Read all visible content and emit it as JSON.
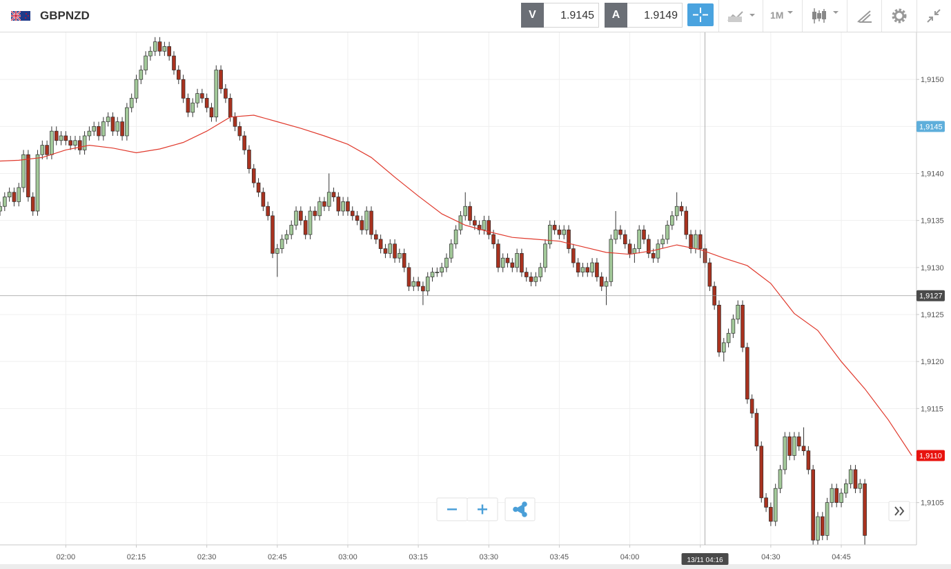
{
  "toolbar": {
    "symbol": "GBPNZD",
    "bid_label": "V",
    "bid": 1.9145,
    "ask_label": "A",
    "ask": 1.9149,
    "timeframe": "1M"
  },
  "chart_data": {
    "type": "candlestick",
    "x": [
      "01:46",
      "01:47",
      "01:48",
      "01:49",
      "01:50",
      "01:51",
      "01:52",
      "01:53",
      "01:54",
      "01:55",
      "01:56",
      "01:57",
      "01:58",
      "01:59",
      "02:00",
      "02:01",
      "02:02",
      "02:03",
      "02:04",
      "02:05",
      "02:06",
      "02:07",
      "02:08",
      "02:09",
      "02:10",
      "02:11",
      "02:12",
      "02:13",
      "02:14",
      "02:15",
      "02:16",
      "02:17",
      "02:18",
      "02:19",
      "02:20",
      "02:21",
      "02:22",
      "02:23",
      "02:24",
      "02:25",
      "02:26",
      "02:27",
      "02:28",
      "02:29",
      "02:30",
      "02:31",
      "02:32",
      "02:33",
      "02:34",
      "02:35",
      "02:36",
      "02:37",
      "02:38",
      "02:39",
      "02:40",
      "02:41",
      "02:42",
      "02:43",
      "02:44",
      "02:45",
      "02:46",
      "02:47",
      "02:48",
      "02:49",
      "02:50",
      "02:51",
      "02:52",
      "02:53",
      "02:54",
      "02:55",
      "02:56",
      "02:57",
      "02:58",
      "02:59",
      "03:00",
      "03:01",
      "03:02",
      "03:03",
      "03:04",
      "03:05",
      "03:06",
      "03:07",
      "03:08",
      "03:09",
      "03:10",
      "03:11",
      "03:12",
      "03:13",
      "03:14",
      "03:15",
      "03:16",
      "03:17",
      "03:18",
      "03:19",
      "03:20",
      "03:21",
      "03:22",
      "03:23",
      "03:24",
      "03:25",
      "03:26",
      "03:27",
      "03:28",
      "03:29",
      "03:30",
      "03:31",
      "03:32",
      "03:33",
      "03:34",
      "03:35",
      "03:36",
      "03:37",
      "03:38",
      "03:39",
      "03:40",
      "03:41",
      "03:42",
      "03:43",
      "03:44",
      "03:45",
      "03:46",
      "03:47",
      "03:48",
      "03:49",
      "03:50",
      "03:51",
      "03:52",
      "03:53",
      "03:54",
      "03:55",
      "03:56",
      "03:57",
      "03:58",
      "03:59",
      "04:00",
      "04:01",
      "04:02",
      "04:03",
      "04:04",
      "04:05",
      "04:06",
      "04:07",
      "04:08",
      "04:09",
      "04:10",
      "04:11",
      "04:12",
      "04:13",
      "04:14",
      "04:15",
      "04:16",
      "04:17",
      "04:18",
      "04:19",
      "04:20",
      "04:21",
      "04:22",
      "04:23",
      "04:24",
      "04:25",
      "04:26",
      "04:27",
      "04:28",
      "04:29",
      "04:30",
      "04:31",
      "04:32",
      "04:33",
      "04:34",
      "04:35",
      "04:36",
      "04:37",
      "04:38",
      "04:39",
      "04:40",
      "04:41",
      "04:42",
      "04:43",
      "04:44",
      "04:45",
      "04:46",
      "04:47",
      "04:48",
      "04:49",
      "04:50"
    ],
    "open": [
      1.9136,
      1.91365,
      1.91375,
      1.9138,
      1.9137,
      1.91385,
      1.9142,
      1.91375,
      1.9136,
      1.9142,
      1.9143,
      1.9142,
      1.91445,
      1.91435,
      1.9144,
      1.91435,
      1.9143,
      1.91435,
      1.91425,
      1.9144,
      1.91445,
      1.9145,
      1.9144,
      1.91455,
      1.9146,
      1.91445,
      1.91455,
      1.9144,
      1.9147,
      1.9148,
      1.915,
      1.9151,
      1.91525,
      1.9153,
      1.9154,
      1.9153,
      1.91535,
      1.91525,
      1.9151,
      1.915,
      1.9148,
      1.91465,
      1.91475,
      1.91485,
      1.9148,
      1.9147,
      1.9146,
      1.9151,
      1.9149,
      1.9148,
      1.9146,
      1.9145,
      1.9144,
      1.91425,
      1.91405,
      1.9139,
      1.9138,
      1.91365,
      1.91355,
      1.91315,
      1.9132,
      1.9133,
      1.91335,
      1.91345,
      1.9136,
      1.9135,
      1.91335,
      1.9136,
      1.91355,
      1.9137,
      1.91365,
      1.9138,
      1.91375,
      1.9136,
      1.9137,
      1.9136,
      1.91355,
      1.9135,
      1.9134,
      1.9136,
      1.91335,
      1.9133,
      1.9132,
      1.91315,
      1.91325,
      1.9131,
      1.91315,
      1.913,
      1.9128,
      1.91285,
      1.9128,
      1.91275,
      1.9129,
      1.91295,
      1.91295,
      1.913,
      1.9131,
      1.91325,
      1.9134,
      1.91355,
      1.91365,
      1.9135,
      1.91345,
      1.9134,
      1.9135,
      1.91335,
      1.91325,
      1.913,
      1.9131,
      1.91305,
      1.913,
      1.91315,
      1.91295,
      1.9129,
      1.91285,
      1.9129,
      1.913,
      1.91325,
      1.91345,
      1.9134,
      1.91335,
      1.9134,
      1.9132,
      1.91305,
      1.91295,
      1.913,
      1.91295,
      1.91305,
      1.9129,
      1.9128,
      1.91285,
      1.9133,
      1.9134,
      1.91335,
      1.91325,
      1.91315,
      1.9132,
      1.9134,
      1.9133,
      1.91315,
      1.9131,
      1.91325,
      1.9133,
      1.91345,
      1.91355,
      1.91365,
      1.9136,
      1.91335,
      1.9132,
      1.91335,
      1.9132,
      1.91305,
      1.9128,
      1.9126,
      1.9121,
      1.9122,
      1.9123,
      1.91245,
      1.9126,
      1.91215,
      1.9116,
      1.91145,
      1.9111,
      1.91055,
      1.91045,
      1.9103,
      1.91065,
      1.91085,
      1.9112,
      1.911,
      1.9112,
      1.9111,
      1.91105,
      1.91085,
      1.9101,
      1.91035,
      1.91015,
      1.9105,
      1.91065,
      1.9105,
      1.9106,
      1.9107,
      1.91085,
      1.91065,
      1.9107
    ],
    "high": [
      1.9137,
      1.9138,
      1.91385,
      1.91385,
      1.9139,
      1.91425,
      1.91425,
      1.9138,
      1.91425,
      1.91435,
      1.91435,
      1.9145,
      1.9145,
      1.91445,
      1.91445,
      1.9144,
      1.9144,
      1.9144,
      1.91445,
      1.9145,
      1.91455,
      1.91455,
      1.9146,
      1.91465,
      1.91465,
      1.9146,
      1.9146,
      1.91475,
      1.91485,
      1.91505,
      1.91515,
      1.9153,
      1.91535,
      1.91545,
      1.91545,
      1.9154,
      1.9154,
      1.9153,
      1.91515,
      1.91505,
      1.91485,
      1.9148,
      1.9149,
      1.9149,
      1.91485,
      1.91475,
      1.91515,
      1.91515,
      1.91495,
      1.91485,
      1.91465,
      1.91455,
      1.91445,
      1.9143,
      1.9141,
      1.91395,
      1.91385,
      1.9137,
      1.9136,
      1.91325,
      1.91335,
      1.9134,
      1.9135,
      1.91365,
      1.91365,
      1.91355,
      1.91365,
      1.91365,
      1.91375,
      1.91375,
      1.914,
      1.91385,
      1.9138,
      1.91375,
      1.91375,
      1.91365,
      1.9136,
      1.91355,
      1.91365,
      1.91365,
      1.9134,
      1.91335,
      1.91325,
      1.9133,
      1.9133,
      1.9132,
      1.9132,
      1.91305,
      1.9129,
      1.9129,
      1.91285,
      1.91295,
      1.913,
      1.913,
      1.91305,
      1.91315,
      1.9133,
      1.91345,
      1.9136,
      1.9138,
      1.9137,
      1.91355,
      1.9135,
      1.91355,
      1.91355,
      1.9134,
      1.9133,
      1.91315,
      1.91315,
      1.9131,
      1.9132,
      1.9132,
      1.913,
      1.91295,
      1.91295,
      1.91305,
      1.9133,
      1.9135,
      1.9135,
      1.91345,
      1.91345,
      1.91345,
      1.91325,
      1.9131,
      1.91305,
      1.91305,
      1.9131,
      1.9131,
      1.91295,
      1.9129,
      1.91335,
      1.9136,
      1.91345,
      1.9134,
      1.9133,
      1.91325,
      1.91345,
      1.91345,
      1.91335,
      1.9132,
      1.9133,
      1.91335,
      1.9135,
      1.9136,
      1.9138,
      1.9137,
      1.91365,
      1.9134,
      1.9134,
      1.9134,
      1.91325,
      1.9131,
      1.91285,
      1.91265,
      1.91225,
      1.91235,
      1.9125,
      1.91265,
      1.91265,
      1.9122,
      1.91165,
      1.9115,
      1.91115,
      1.9106,
      1.9105,
      1.9107,
      1.9109,
      1.91125,
      1.91125,
      1.91125,
      1.91125,
      1.9113,
      1.9111,
      1.9109,
      1.9104,
      1.9104,
      1.91055,
      1.9107,
      1.9107,
      1.91065,
      1.91075,
      1.9109,
      1.9109,
      1.91075,
      1.91075
    ],
    "low": [
      1.91355,
      1.9136,
      1.9137,
      1.91365,
      1.91365,
      1.9138,
      1.9137,
      1.91355,
      1.91355,
      1.91415,
      1.91415,
      1.91415,
      1.9143,
      1.9143,
      1.9143,
      1.91425,
      1.91425,
      1.9142,
      1.9142,
      1.91435,
      1.9144,
      1.91435,
      1.91435,
      1.9145,
      1.9144,
      1.9144,
      1.91435,
      1.91435,
      1.91465,
      1.91475,
      1.91495,
      1.91505,
      1.9152,
      1.91525,
      1.91525,
      1.91525,
      1.9152,
      1.91505,
      1.91495,
      1.91475,
      1.9146,
      1.9146,
      1.9147,
      1.91475,
      1.91465,
      1.91455,
      1.91455,
      1.91485,
      1.91475,
      1.91455,
      1.91445,
      1.91435,
      1.9142,
      1.914,
      1.91385,
      1.91375,
      1.9136,
      1.9135,
      1.9131,
      1.9129,
      1.91315,
      1.91325,
      1.9133,
      1.9134,
      1.91345,
      1.9133,
      1.9133,
      1.9135,
      1.9135,
      1.9136,
      1.9136,
      1.9137,
      1.91355,
      1.91355,
      1.91355,
      1.9135,
      1.91345,
      1.91335,
      1.91335,
      1.9133,
      1.91325,
      1.91315,
      1.9131,
      1.9131,
      1.91305,
      1.91305,
      1.91295,
      1.91275,
      1.91275,
      1.91275,
      1.9126,
      1.9127,
      1.91285,
      1.9129,
      1.9129,
      1.91295,
      1.91305,
      1.9132,
      1.91335,
      1.9135,
      1.91345,
      1.9134,
      1.91335,
      1.91335,
      1.9133,
      1.9132,
      1.91295,
      1.91295,
      1.913,
      1.91295,
      1.91295,
      1.9129,
      1.91285,
      1.9128,
      1.9128,
      1.91285,
      1.91295,
      1.9132,
      1.91335,
      1.9133,
      1.9133,
      1.91315,
      1.913,
      1.9129,
      1.9129,
      1.9129,
      1.9129,
      1.91285,
      1.91275,
      1.9126,
      1.9128,
      1.91325,
      1.9133,
      1.9132,
      1.9131,
      1.91305,
      1.91315,
      1.91325,
      1.9131,
      1.91305,
      1.91305,
      1.9132,
      1.91325,
      1.9134,
      1.9135,
      1.91355,
      1.9133,
      1.91315,
      1.91315,
      1.9131,
      1.913,
      1.91275,
      1.91255,
      1.91205,
      1.912,
      1.91215,
      1.91225,
      1.9124,
      1.9121,
      1.91155,
      1.9114,
      1.91105,
      1.9105,
      1.9104,
      1.91025,
      1.91025,
      1.9106,
      1.9108,
      1.91095,
      1.91095,
      1.91105,
      1.911,
      1.9108,
      1.91005,
      1.91005,
      1.9101,
      1.9101,
      1.91045,
      1.91045,
      1.91045,
      1.91055,
      1.91065,
      1.9106,
      1.9106,
      1.91005
    ],
    "close": [
      1.91365,
      1.91375,
      1.9138,
      1.9137,
      1.91385,
      1.9142,
      1.91375,
      1.9136,
      1.9142,
      1.9143,
      1.9142,
      1.91445,
      1.91435,
      1.9144,
      1.91435,
      1.9143,
      1.91435,
      1.91425,
      1.9144,
      1.91445,
      1.9145,
      1.9144,
      1.91455,
      1.9146,
      1.91445,
      1.91455,
      1.9144,
      1.9147,
      1.9148,
      1.915,
      1.9151,
      1.91525,
      1.9153,
      1.9154,
      1.9153,
      1.91535,
      1.91525,
      1.9151,
      1.915,
      1.9148,
      1.91465,
      1.91475,
      1.91485,
      1.9148,
      1.9147,
      1.9146,
      1.9151,
      1.9149,
      1.9148,
      1.9146,
      1.9145,
      1.9144,
      1.91425,
      1.91405,
      1.9139,
      1.9138,
      1.91365,
      1.91355,
      1.91315,
      1.9132,
      1.9133,
      1.91335,
      1.91345,
      1.9136,
      1.9135,
      1.91335,
      1.9136,
      1.91355,
      1.9137,
      1.91365,
      1.9138,
      1.91375,
      1.9136,
      1.9137,
      1.9136,
      1.91355,
      1.9135,
      1.9134,
      1.9136,
      1.91335,
      1.9133,
      1.9132,
      1.91315,
      1.91325,
      1.9131,
      1.91315,
      1.913,
      1.9128,
      1.91285,
      1.9128,
      1.91275,
      1.9129,
      1.91295,
      1.91295,
      1.913,
      1.9131,
      1.91325,
      1.9134,
      1.91355,
      1.91365,
      1.9135,
      1.91345,
      1.9134,
      1.9135,
      1.91335,
      1.91325,
      1.913,
      1.9131,
      1.91305,
      1.913,
      1.91315,
      1.91295,
      1.9129,
      1.91285,
      1.9129,
      1.913,
      1.91325,
      1.91345,
      1.9134,
      1.91335,
      1.9134,
      1.9132,
      1.91305,
      1.91295,
      1.913,
      1.91295,
      1.91305,
      1.9129,
      1.9128,
      1.91285,
      1.9133,
      1.9134,
      1.91335,
      1.91325,
      1.91315,
      1.9132,
      1.9134,
      1.9133,
      1.91315,
      1.9131,
      1.91325,
      1.9133,
      1.91345,
      1.91355,
      1.91365,
      1.9136,
      1.91335,
      1.9132,
      1.91335,
      1.9132,
      1.91305,
      1.9128,
      1.9126,
      1.9121,
      1.9122,
      1.9123,
      1.91245,
      1.9126,
      1.91215,
      1.9116,
      1.91145,
      1.9111,
      1.91055,
      1.91045,
      1.9103,
      1.91065,
      1.91085,
      1.9112,
      1.911,
      1.9112,
      1.9111,
      1.91105,
      1.91085,
      1.9101,
      1.91035,
      1.91015,
      1.9105,
      1.91065,
      1.9105,
      1.9106,
      1.9107,
      1.91085,
      1.91065,
      1.9107,
      1.91015
    ],
    "up_color": "#a3c99a",
    "down_color": "#a8321f",
    "ma": {
      "color": "#e0392c",
      "x": [
        "01:45",
        "01:50",
        "01:55",
        "02:00",
        "02:05",
        "02:10",
        "02:15",
        "02:20",
        "02:25",
        "02:30",
        "02:35",
        "02:40",
        "02:45",
        "02:50",
        "02:55",
        "03:00",
        "03:05",
        "03:10",
        "03:15",
        "03:20",
        "03:25",
        "03:30",
        "03:35",
        "03:40",
        "03:45",
        "03:50",
        "03:55",
        "04:00",
        "04:05",
        "04:10",
        "04:15",
        "04:20",
        "04:25",
        "04:30",
        "04:35",
        "04:40",
        "04:45",
        "04:50",
        "04:55",
        "05:00"
      ],
      "values": [
        1.91413,
        1.91414,
        1.91417,
        1.91425,
        1.9143,
        1.91427,
        1.91422,
        1.91426,
        1.91433,
        1.91445,
        1.9146,
        1.91462,
        1.91455,
        1.91448,
        1.9144,
        1.91431,
        1.91417,
        1.91396,
        1.91376,
        1.91357,
        1.91345,
        1.91338,
        1.91332,
        1.9133,
        1.91328,
        1.91322,
        1.91316,
        1.91314,
        1.91318,
        1.91324,
        1.91319,
        1.9131,
        1.91302,
        1.91283,
        1.91251,
        1.91233,
        1.912,
        1.91171,
        1.91138,
        1.911
      ]
    },
    "xlim": [
      "01:46",
      "05:01"
    ],
    "xticks": [
      "02:00",
      "02:15",
      "02:30",
      "02:45",
      "03:00",
      "03:15",
      "03:30",
      "03:45",
      "04:00",
      "04:15",
      "04:30",
      "04:45"
    ],
    "ylim": [
      1.91005,
      1.9155
    ],
    "yticks": [
      {
        "value": 1.9105,
        "label": "1,9105"
      },
      {
        "value": 1.911,
        "label": "1,9110"
      },
      {
        "value": 1.9115,
        "label": "1,9115"
      },
      {
        "value": 1.912,
        "label": "1,9120"
      },
      {
        "value": 1.9125,
        "label": "1,9125"
      },
      {
        "value": 1.913,
        "label": "1,9130"
      },
      {
        "value": 1.9135,
        "label": "1,9135"
      },
      {
        "value": 1.914,
        "label": "1,9140"
      },
      {
        "value": 1.9145,
        "label": "1,9145"
      },
      {
        "value": 1.915,
        "label": "1,9150"
      }
    ],
    "grid": true,
    "price_labels": [
      {
        "value": 1.9145,
        "label": "1,9145",
        "color": "#5eaedb"
      },
      {
        "value": 1.911,
        "label": "1,9110",
        "color": "#e8120e"
      }
    ],
    "crosshair": {
      "x": "04:16",
      "x_label": "13/11 04:16",
      "y": 1.9127,
      "y_label": "1,9127"
    }
  }
}
